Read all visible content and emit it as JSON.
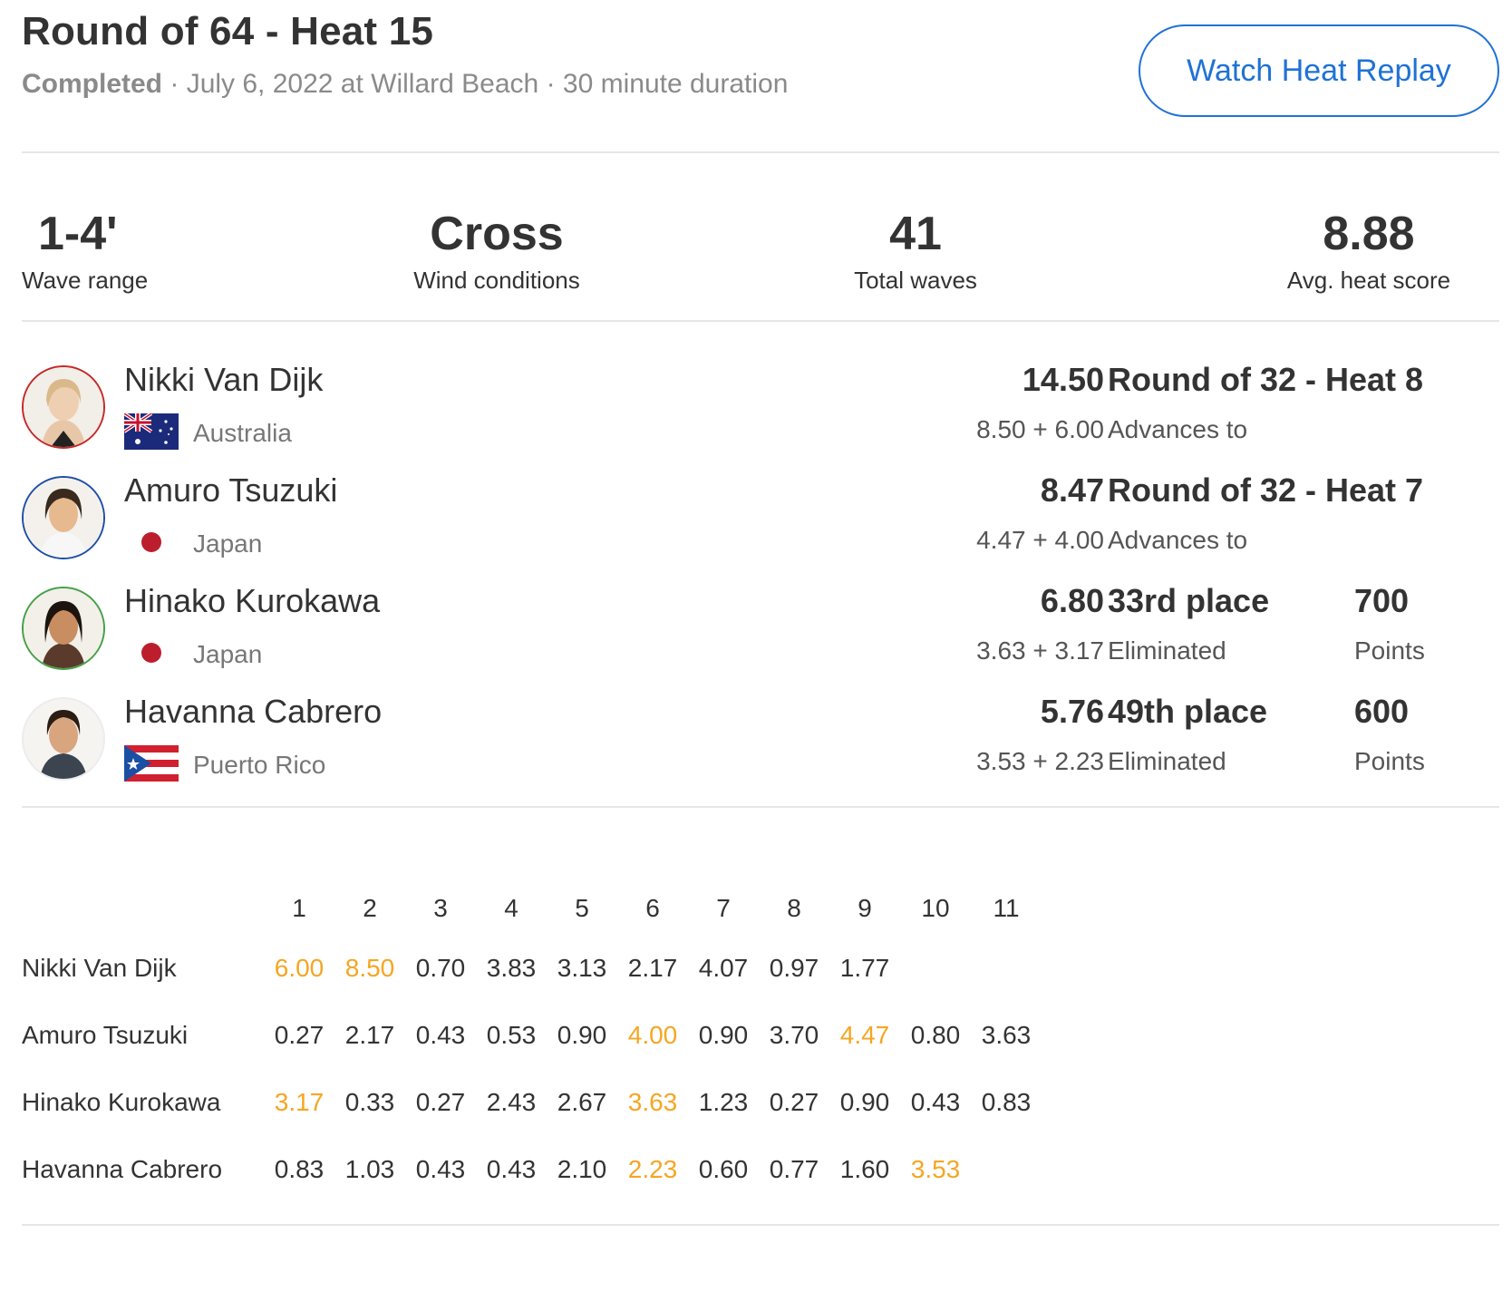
{
  "header": {
    "title": "Round of 64 - Heat 15",
    "status": "Completed",
    "separator": " · ",
    "date_location": "July 6, 2022 at Willard Beach",
    "duration": "30 minute duration",
    "replay_button": "Watch Heat Replay"
  },
  "colors": {
    "accent": "#1f72d6",
    "highlight": "#f5a623",
    "text": "#333333"
  },
  "stats": [
    {
      "value": "1-4'",
      "label": "Wave range"
    },
    {
      "value": "Cross",
      "label": "Wind conditions"
    },
    {
      "value": "41",
      "label": "Total waves"
    },
    {
      "value": "8.88",
      "label": "Avg. heat score"
    }
  ],
  "athletes": [
    {
      "name": "Nikki Van Dijk",
      "country": "Australia",
      "flag": "australia-flag-icon",
      "ring_color": "#c62828",
      "total": "14.50",
      "breakdown": "8.50 + 6.00",
      "result": "Round of 32 - Heat 8",
      "result_sub": "Advances to"
    },
    {
      "name": "Amuro Tsuzuki",
      "country": "Japan",
      "flag": "japan-flag-icon",
      "ring_color": "#1e4fa8",
      "total": "8.47",
      "breakdown": "4.47 + 4.00",
      "result": "Round of 32 - Heat 7",
      "result_sub": "Advances to"
    },
    {
      "name": "Hinako Kurokawa",
      "country": "Japan",
      "flag": "japan-flag-icon",
      "ring_color": "#43a047",
      "total": "6.80",
      "breakdown": "3.63 + 3.17",
      "result": "33rd place",
      "result_sub": "Eliminated",
      "points": "700",
      "points_label": "Points"
    },
    {
      "name": "Havanna Cabrero",
      "country": "Puerto Rico",
      "flag": "puerto-rico-flag-icon",
      "ring_color": "#ececec",
      "total": "5.76",
      "breakdown": "3.53 + 2.23",
      "result": "49th place",
      "result_sub": "Eliminated",
      "points": "600",
      "points_label": "Points"
    }
  ],
  "wave_table": {
    "columns": [
      "1",
      "2",
      "3",
      "4",
      "5",
      "6",
      "7",
      "8",
      "9",
      "10",
      "11"
    ],
    "rows": [
      {
        "name": "Nikki Van Dijk",
        "scores": [
          "6.00",
          "8.50",
          "0.70",
          "3.83",
          "3.13",
          "2.17",
          "4.07",
          "0.97",
          "1.77"
        ],
        "highlighted": [
          0,
          1
        ]
      },
      {
        "name": "Amuro Tsuzuki",
        "scores": [
          "0.27",
          "2.17",
          "0.43",
          "0.53",
          "0.90",
          "4.00",
          "0.90",
          "3.70",
          "4.47",
          "0.80",
          "3.63"
        ],
        "highlighted": [
          5,
          8
        ]
      },
      {
        "name": "Hinako Kurokawa",
        "scores": [
          "3.17",
          "0.33",
          "0.27",
          "2.43",
          "2.67",
          "3.63",
          "1.23",
          "0.27",
          "0.90",
          "0.43",
          "0.83"
        ],
        "highlighted": [
          0,
          5
        ]
      },
      {
        "name": "Havanna Cabrero",
        "scores": [
          "0.83",
          "1.03",
          "0.43",
          "0.43",
          "2.10",
          "2.23",
          "0.60",
          "0.77",
          "1.60",
          "3.53"
        ],
        "highlighted": [
          5,
          9
        ]
      }
    ]
  }
}
